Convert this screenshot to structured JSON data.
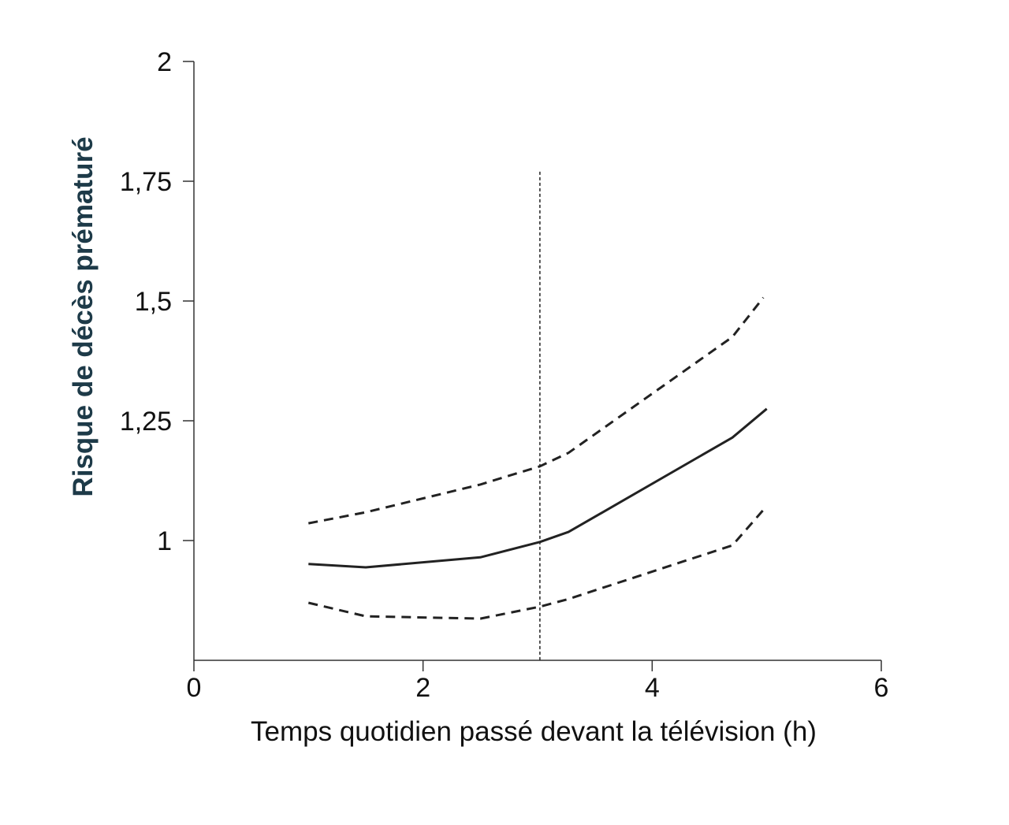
{
  "chart_data": {
    "type": "line",
    "title": "",
    "xlabel": "Temps quotidien passé devant la télévision (h)",
    "ylabel": "Risque de décès prématuré",
    "xlim": [
      0,
      6
    ],
    "ylim": [
      0.75,
      2
    ],
    "xticks": [
      0,
      2,
      4,
      6
    ],
    "xtick_labels": [
      "0",
      "2",
      "4",
      "6"
    ],
    "yticks": [
      1,
      1.25,
      1.5,
      1.75,
      2
    ],
    "ytick_labels": [
      "1",
      "1,25",
      "1,5",
      "1,75",
      "2"
    ],
    "grid": false,
    "series": [
      {
        "name": "estimate",
        "style": "solid",
        "x": [
          1.0,
          1.5,
          2.5,
          3.02,
          3.27,
          4.7,
          5.0
        ],
        "y": [
          0.951,
          0.944,
          0.965,
          0.997,
          1.018,
          1.215,
          1.275
        ]
      },
      {
        "name": "upper-ci",
        "style": "dashed",
        "x": [
          1.0,
          1.5,
          2.5,
          3.02,
          3.27,
          4.7,
          4.97
        ],
        "y": [
          1.036,
          1.059,
          1.117,
          1.155,
          1.183,
          1.425,
          1.507
        ]
      },
      {
        "name": "lower-ci",
        "style": "dashed",
        "x": [
          1.0,
          1.5,
          2.5,
          3.02,
          3.27,
          4.7,
          5.0
        ],
        "y": [
          0.87,
          0.842,
          0.837,
          0.862,
          0.878,
          0.99,
          1.072
        ]
      }
    ],
    "annotations": [
      {
        "type": "vline",
        "style": "dotted",
        "x": 3.02,
        "y_range": [
          0.75,
          1.77
        ]
      }
    ],
    "colors": {
      "line": "#222222",
      "ylabel": "#1d3a48"
    }
  }
}
